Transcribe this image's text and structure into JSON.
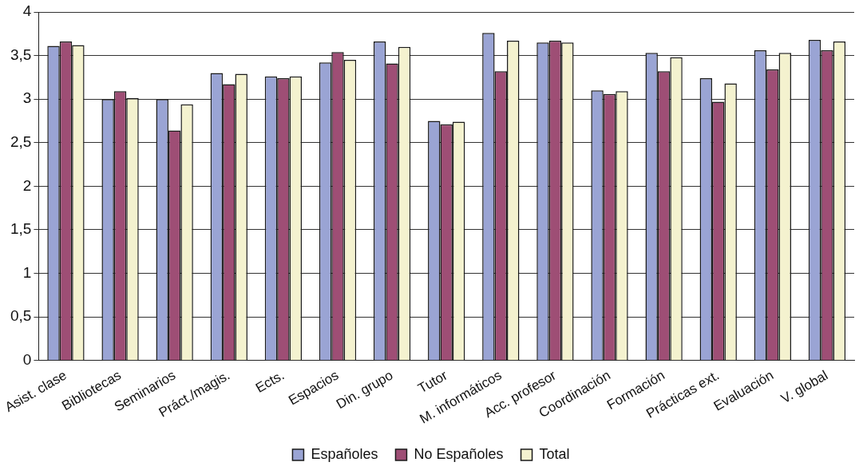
{
  "chart_data": {
    "type": "bar",
    "categories": [
      "Asist. clase",
      "Bibliotecas",
      "Seminarios",
      "Práct./magis.",
      "Ects.",
      "Espacios",
      "Din. grupo",
      "Tutor",
      "M. informáticos",
      "Acc. profesor",
      "Coordinación",
      "Formación",
      "Prácticas ext.",
      "Evaluación",
      "V. global"
    ],
    "series": [
      {
        "name": "Españoles",
        "color": "#9aa4d4",
        "values": [
          3.61,
          3.0,
          3.0,
          3.3,
          3.26,
          3.42,
          3.66,
          2.75,
          3.76,
          3.65,
          3.1,
          3.53,
          3.24,
          3.56,
          3.68
        ]
      },
      {
        "name": "No Españoles",
        "color": "#9e4e75",
        "values": [
          3.66,
          3.09,
          2.64,
          3.17,
          3.24,
          3.54,
          3.41,
          2.71,
          3.32,
          3.67,
          3.06,
          3.32,
          2.97,
          3.34,
          3.56
        ]
      },
      {
        "name": "Total",
        "color": "#f4f2cf",
        "values": [
          3.62,
          3.01,
          2.94,
          3.29,
          3.26,
          3.45,
          3.6,
          2.74,
          3.67,
          3.65,
          3.09,
          3.48,
          3.18,
          3.53,
          3.66
        ]
      }
    ],
    "ylim": [
      0,
      4
    ],
    "yticks": [
      0,
      {
        "value": 0.5,
        "label": "0,5"
      },
      1,
      {
        "value": 1.5,
        "label": "1,5"
      },
      2,
      {
        "value": 2.5,
        "label": "2,5"
      },
      3,
      {
        "value": 3.5,
        "label": "3,5"
      },
      4
    ],
    "grid": "y",
    "legend": "bottom"
  }
}
